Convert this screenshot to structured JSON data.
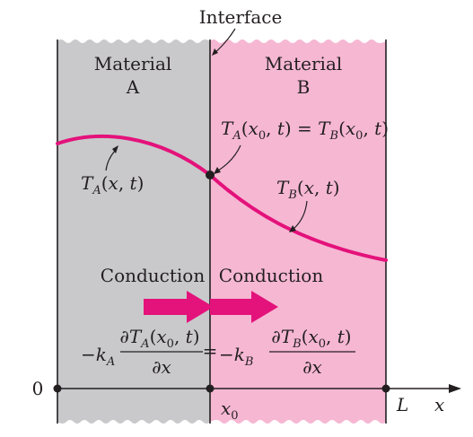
{
  "diagram": {
    "interface_label": "Interface",
    "material_a": {
      "line1": "Material",
      "line2": "A"
    },
    "material_b": {
      "line1": "Material",
      "line2": "B"
    },
    "interface_condition": {
      "text": "T_A(x_0, t) = T_B(x_0, t)"
    },
    "profile_a_label": "T_A(x, t)",
    "profile_b_label": "T_B(x, t)",
    "conduction_a": "Conduction",
    "conduction_b": "Conduction",
    "flux_equation": {
      "lhs_coef": "−k_A",
      "lhs_numer": "∂T_A(x_0, t)",
      "denom": "∂x",
      "equals": "=",
      "rhs_coef": "−k_B",
      "rhs_numer": "∂T_B(x_0, t)"
    },
    "axis": {
      "origin": "0",
      "interface_tick": "x_0",
      "end_tick": "L",
      "variable": "x"
    },
    "colors": {
      "material_a": "#c9c9cb",
      "material_b": "#f6b7d3",
      "accent": "#e4127b",
      "ink": "#231f20"
    }
  }
}
